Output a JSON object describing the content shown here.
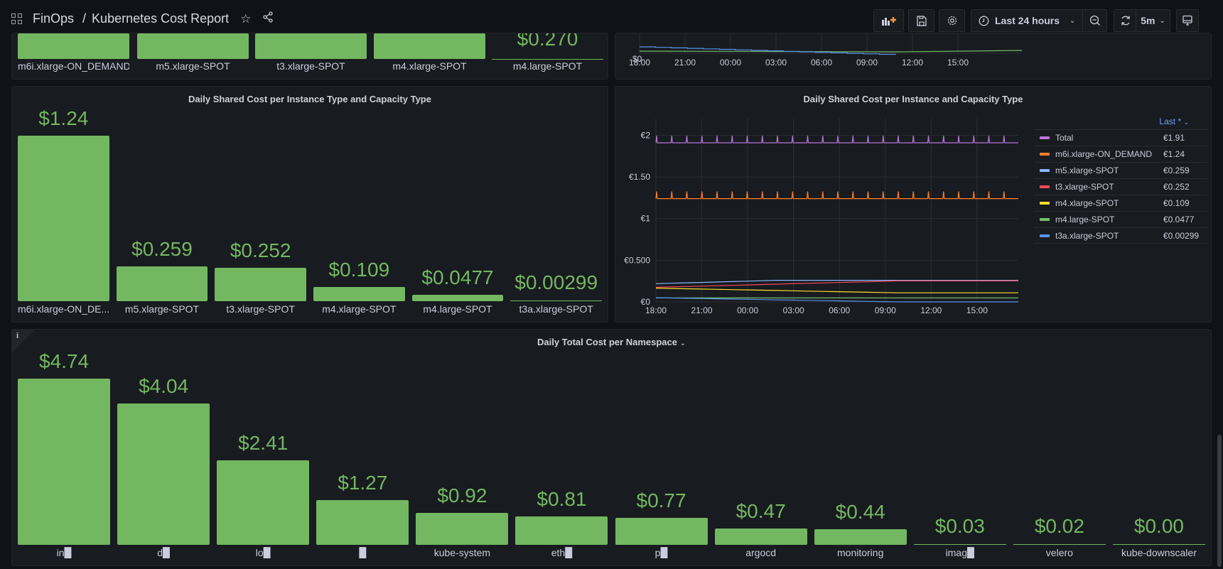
{
  "header": {
    "folder": "FinOps",
    "separator": "/",
    "title": "Kubernetes Cost Report",
    "time_range": "Last 24 hours",
    "refresh_interval": "5m"
  },
  "top_bar_panel": {
    "labels": [
      "m6i.xlarge-ON_DEMAND",
      "m5.xlarge-SPOT",
      "t3.xlarge-SPOT",
      "m4.xlarge-SPOT",
      "m4.large-SPOT"
    ],
    "last_value": "$0.270"
  },
  "top_ts_panel": {
    "y_label": "$0",
    "x_ticks": [
      "18:00",
      "21:00",
      "00:00",
      "03:00",
      "06:00",
      "09:00",
      "12:00",
      "15:00"
    ]
  },
  "chart_data": [
    {
      "type": "bar",
      "title": "Daily Shared Cost per Instance Type and Capacity Type",
      "categories": [
        "m6i.xlarge-ON_DE...",
        "m5.xlarge-SPOT",
        "t3.xlarge-SPOT",
        "m4.xlarge-SPOT",
        "m4.large-SPOT",
        "t3a.xlarge-SPOT"
      ],
      "values": [
        1.24,
        0.259,
        0.252,
        0.109,
        0.0477,
        0.00299
      ],
      "value_labels": [
        "$1.24",
        "$0.259",
        "$0.252",
        "$0.109",
        "$0.0477",
        "$0.00299"
      ],
      "color": "#73b761"
    },
    {
      "type": "line",
      "title": "Daily Shared Cost per Instance and Capacity Type",
      "x": [
        "18:00",
        "21:00",
        "00:00",
        "03:00",
        "06:00",
        "09:00",
        "12:00",
        "15:00"
      ],
      "y_ticks": [
        "€0",
        "€0.500",
        "€1",
        "€1.50",
        "€2"
      ],
      "ylim": [
        0,
        2.2
      ],
      "legend_header": "Last *",
      "series": [
        {
          "name": "Total",
          "color": "#b877d9",
          "last": "€1.91",
          "base": 1.91
        },
        {
          "name": "m6i.xlarge-ON_DEMAND",
          "color": "#ff7f2a",
          "last": "€1.24",
          "base": 1.24
        },
        {
          "name": "m5.xlarge-SPOT",
          "color": "#8ab8ff",
          "last": "€0.259",
          "base": 0.259
        },
        {
          "name": "t3.xlarge-SPOT",
          "color": "#f2495c",
          "last": "€0.252",
          "base": 0.252
        },
        {
          "name": "m4.xlarge-SPOT",
          "color": "#fade2a",
          "last": "€0.109",
          "base": 0.109
        },
        {
          "name": "m4.large-SPOT",
          "color": "#73bf69",
          "last": "€0.0477",
          "base": 0.0477
        },
        {
          "name": "t3a.xlarge-SPOT",
          "color": "#5794f2",
          "last": "€0.00299",
          "base": 0.00299
        }
      ]
    },
    {
      "type": "bar",
      "title": "Daily Total Cost per Namespace",
      "categories": [
        "in█",
        "d█",
        "lo█",
        "█",
        "kube-system",
        "eth█",
        "p█",
        "argocd",
        "monitoring",
        "imag█",
        "velero",
        "kube-downscaler"
      ],
      "values": [
        4.74,
        4.04,
        2.41,
        1.27,
        0.92,
        0.81,
        0.77,
        0.47,
        0.44,
        0.03,
        0.02,
        0.0
      ],
      "value_labels": [
        "$4.74",
        "$4.04",
        "$2.41",
        "$1.27",
        "$0.92",
        "$0.81",
        "$0.77",
        "$0.47",
        "$0.44",
        "$0.03",
        "$0.02",
        "$0.00"
      ],
      "color": "#73b761"
    }
  ]
}
